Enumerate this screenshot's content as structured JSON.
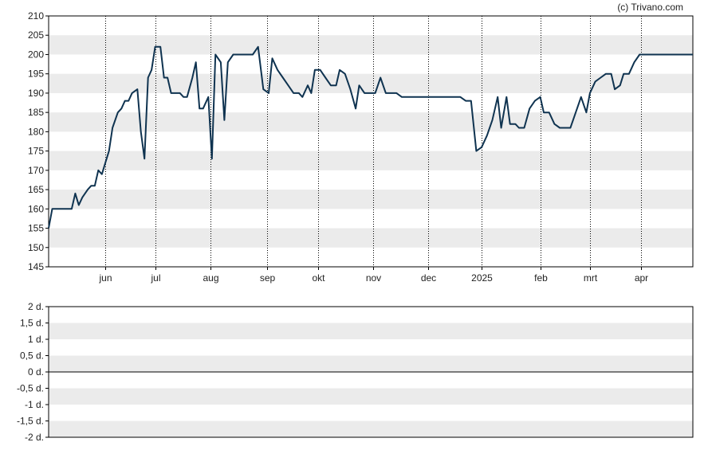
{
  "credit": "(c) Trivano.com",
  "colors": {
    "line": "#0f3350",
    "band": "#ebebeb",
    "axis": "#000000",
    "vgrid": "#000000"
  },
  "chart_data": [
    {
      "type": "line",
      "title": "",
      "xlabel": "",
      "ylabel": "",
      "ylim": [
        145,
        210
      ],
      "yticks": [
        "210",
        "205",
        "200",
        "195",
        "190",
        "185",
        "180",
        "175",
        "170",
        "165",
        "160",
        "155",
        "150",
        "145"
      ],
      "grid": "alternating horizontal bands, dotted vertical lines at month ticks",
      "xlim": [
        "2024-05-02",
        "2025-04-30"
      ],
      "xticks": [
        {
          "label": "jun",
          "date": "2024-06-03"
        },
        {
          "label": "jul",
          "date": "2024-07-01"
        },
        {
          "label": "aug",
          "date": "2024-08-01"
        },
        {
          "label": "sep",
          "date": "2024-09-02"
        },
        {
          "label": "okt",
          "date": "2024-10-01"
        },
        {
          "label": "nov",
          "date": "2024-11-01"
        },
        {
          "label": "dec",
          "date": "2024-12-02"
        },
        {
          "label": "2025",
          "date": "2025-01-01"
        },
        {
          "label": "feb",
          "date": "2025-02-03"
        },
        {
          "label": "mrt",
          "date": "2025-03-03"
        },
        {
          "label": "apr",
          "date": "2025-04-01"
        }
      ],
      "series": [
        {
          "points": [
            [
              "2024-05-02",
              155
            ],
            [
              "2024-05-04",
              160
            ],
            [
              "2024-05-06",
              160
            ],
            [
              "2024-05-08",
              160
            ],
            [
              "2024-05-11",
              160
            ],
            [
              "2024-05-15",
              160
            ],
            [
              "2024-05-17",
              164
            ],
            [
              "2024-05-19",
              161
            ],
            [
              "2024-05-21",
              163
            ],
            [
              "2024-05-24",
              165
            ],
            [
              "2024-05-26",
              166
            ],
            [
              "2024-05-28",
              166
            ],
            [
              "2024-05-30",
              170
            ],
            [
              "2024-06-01",
              169
            ],
            [
              "2024-06-03",
              172
            ],
            [
              "2024-06-05",
              175
            ],
            [
              "2024-06-07",
              181
            ],
            [
              "2024-06-10",
              185
            ],
            [
              "2024-06-12",
              186
            ],
            [
              "2024-06-14",
              188
            ],
            [
              "2024-06-16",
              188
            ],
            [
              "2024-06-18",
              190
            ],
            [
              "2024-06-21",
              191
            ],
            [
              "2024-06-23",
              180
            ],
            [
              "2024-06-25",
              173
            ],
            [
              "2024-06-27",
              194
            ],
            [
              "2024-06-29",
              196
            ],
            [
              "2024-07-01",
              202
            ],
            [
              "2024-07-04",
              202
            ],
            [
              "2024-07-06",
              194
            ],
            [
              "2024-07-08",
              194
            ],
            [
              "2024-07-10",
              190
            ],
            [
              "2024-07-12",
              190
            ],
            [
              "2024-07-15",
              190
            ],
            [
              "2024-07-17",
              189
            ],
            [
              "2024-07-19",
              189
            ],
            [
              "2024-07-22",
              194
            ],
            [
              "2024-07-24",
              198
            ],
            [
              "2024-07-26",
              186
            ],
            [
              "2024-07-28",
              186
            ],
            [
              "2024-07-31",
              189
            ],
            [
              "2024-08-02",
              173
            ],
            [
              "2024-08-04",
              200
            ],
            [
              "2024-08-07",
              198
            ],
            [
              "2024-08-09",
              183
            ],
            [
              "2024-08-11",
              198
            ],
            [
              "2024-08-14",
              200
            ],
            [
              "2024-08-16",
              200
            ],
            [
              "2024-08-19",
              200
            ],
            [
              "2024-08-22",
              200
            ],
            [
              "2024-08-25",
              200
            ],
            [
              "2024-08-28",
              202
            ],
            [
              "2024-08-31",
              191
            ],
            [
              "2024-09-03",
              190
            ],
            [
              "2024-09-05",
              199
            ],
            [
              "2024-09-08",
              196
            ],
            [
              "2024-09-11",
              194
            ],
            [
              "2024-09-14",
              192
            ],
            [
              "2024-09-17",
              190
            ],
            [
              "2024-09-20",
              190
            ],
            [
              "2024-09-22",
              189
            ],
            [
              "2024-09-25",
              192
            ],
            [
              "2024-09-27",
              190
            ],
            [
              "2024-09-29",
              196
            ],
            [
              "2024-10-02",
              196
            ],
            [
              "2024-10-05",
              194
            ],
            [
              "2024-10-08",
              192
            ],
            [
              "2024-10-11",
              192
            ],
            [
              "2024-10-13",
              196
            ],
            [
              "2024-10-16",
              195
            ],
            [
              "2024-10-19",
              191
            ],
            [
              "2024-10-22",
              186
            ],
            [
              "2024-10-24",
              192
            ],
            [
              "2024-10-27",
              190
            ],
            [
              "2024-10-30",
              190
            ],
            [
              "2024-11-02",
              190
            ],
            [
              "2024-11-05",
              194
            ],
            [
              "2024-11-08",
              190
            ],
            [
              "2024-11-11",
              190
            ],
            [
              "2024-11-14",
              190
            ],
            [
              "2024-11-17",
              189
            ],
            [
              "2024-11-20",
              189
            ],
            [
              "2024-11-25",
              189
            ],
            [
              "2024-11-30",
              189
            ],
            [
              "2024-12-05",
              189
            ],
            [
              "2024-12-10",
              189
            ],
            [
              "2024-12-15",
              189
            ],
            [
              "2024-12-20",
              189
            ],
            [
              "2024-12-23",
              188
            ],
            [
              "2024-12-26",
              188
            ],
            [
              "2024-12-29",
              175
            ],
            [
              "2025-01-01",
              176
            ],
            [
              "2025-01-04",
              179
            ],
            [
              "2025-01-07",
              183
            ],
            [
              "2025-01-10",
              189
            ],
            [
              "2025-01-12",
              181
            ],
            [
              "2025-01-15",
              189
            ],
            [
              "2025-01-17",
              182
            ],
            [
              "2025-01-20",
              182
            ],
            [
              "2025-01-22",
              181
            ],
            [
              "2025-01-25",
              181
            ],
            [
              "2025-01-28",
              186
            ],
            [
              "2025-01-31",
              188
            ],
            [
              "2025-02-03",
              189
            ],
            [
              "2025-02-05",
              185
            ],
            [
              "2025-02-08",
              185
            ],
            [
              "2025-02-11",
              182
            ],
            [
              "2025-02-14",
              181
            ],
            [
              "2025-02-17",
              181
            ],
            [
              "2025-02-20",
              181
            ],
            [
              "2025-02-23",
              185
            ],
            [
              "2025-02-26",
              189
            ],
            [
              "2025-03-01",
              185
            ],
            [
              "2025-03-03",
              190
            ],
            [
              "2025-03-06",
              193
            ],
            [
              "2025-03-09",
              194
            ],
            [
              "2025-03-12",
              195
            ],
            [
              "2025-03-15",
              195
            ],
            [
              "2025-03-17",
              191
            ],
            [
              "2025-03-20",
              192
            ],
            [
              "2025-03-22",
              195
            ],
            [
              "2025-03-25",
              195
            ],
            [
              "2025-03-28",
              198
            ],
            [
              "2025-03-31",
              200
            ],
            [
              "2025-04-04",
              200
            ],
            [
              "2025-04-10",
              200
            ],
            [
              "2025-04-30",
              200
            ]
          ]
        }
      ]
    },
    {
      "type": "line",
      "title": "",
      "xlabel": "",
      "ylabel": "",
      "ylim": [
        -2,
        2
      ],
      "yticks": [
        "2 d.",
        "1,5 d.",
        "1 d.",
        "0,5 d.",
        "0 d.",
        "-0,5 d.",
        "-1 d.",
        "-1,5 d.",
        "-2 d."
      ],
      "grid": "alternating horizontal bands, baseline at 0",
      "series": []
    }
  ]
}
